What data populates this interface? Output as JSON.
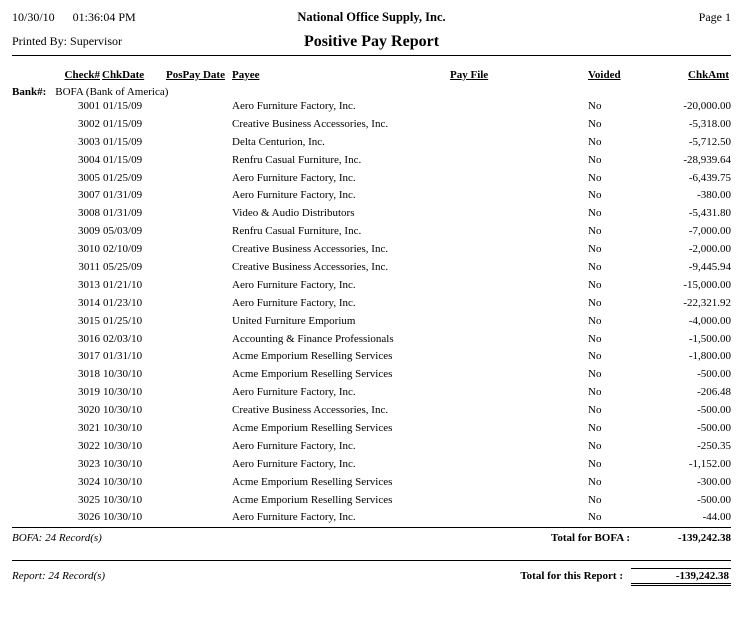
{
  "header": {
    "date": "10/30/10",
    "time": "01:36:04 PM",
    "printed_by_label": "Printed By:",
    "printed_by": "Supervisor",
    "company": "National Office Supply, Inc.",
    "title": "Positive Pay Report",
    "page": "Page 1"
  },
  "columns": {
    "check": "Check#",
    "chkdate": "ChkDate",
    "pospay": "PosPay Date",
    "payee": "Payee",
    "payfile": "Pay File",
    "voided": "Voided",
    "chkamt": "ChkAmt"
  },
  "bank": {
    "label": "Bank#:",
    "name": "BOFA (Bank of America)"
  },
  "rows": [
    {
      "check": "3001",
      "chkdate": "01/15/09",
      "pospay": "",
      "payee": "Aero Furniture Factory, Inc.",
      "payfile": "",
      "voided": "No",
      "chkamt": "-20,000.00"
    },
    {
      "check": "3002",
      "chkdate": "01/15/09",
      "pospay": "",
      "payee": "Creative Business Accessories, Inc.",
      "payfile": "",
      "voided": "No",
      "chkamt": "-5,318.00"
    },
    {
      "check": "3003",
      "chkdate": "01/15/09",
      "pospay": "",
      "payee": "Delta Centurion, Inc.",
      "payfile": "",
      "voided": "No",
      "chkamt": "-5,712.50"
    },
    {
      "check": "3004",
      "chkdate": "01/15/09",
      "pospay": "",
      "payee": "Renfru Casual Furniture, Inc.",
      "payfile": "",
      "voided": "No",
      "chkamt": "-28,939.64"
    },
    {
      "check": "3005",
      "chkdate": "01/25/09",
      "pospay": "",
      "payee": "Aero Furniture Factory, Inc.",
      "payfile": "",
      "voided": "No",
      "chkamt": "-6,439.75"
    },
    {
      "check": "3007",
      "chkdate": "01/31/09",
      "pospay": "",
      "payee": "Aero Furniture Factory, Inc.",
      "payfile": "",
      "voided": "No",
      "chkamt": "-380.00"
    },
    {
      "check": "3008",
      "chkdate": "01/31/09",
      "pospay": "",
      "payee": "Video & Audio Distributors",
      "payfile": "",
      "voided": "No",
      "chkamt": "-5,431.80"
    },
    {
      "check": "3009",
      "chkdate": "05/03/09",
      "pospay": "",
      "payee": "Renfru Casual Furniture, Inc.",
      "payfile": "",
      "voided": "No",
      "chkamt": "-7,000.00"
    },
    {
      "check": "3010",
      "chkdate": "02/10/09",
      "pospay": "",
      "payee": "Creative Business Accessories, Inc.",
      "payfile": "",
      "voided": "No",
      "chkamt": "-2,000.00"
    },
    {
      "check": "3011",
      "chkdate": "05/25/09",
      "pospay": "",
      "payee": "Creative Business Accessories, Inc.",
      "payfile": "",
      "voided": "No",
      "chkamt": "-9,445.94"
    },
    {
      "check": "3013",
      "chkdate": "01/21/10",
      "pospay": "",
      "payee": "Aero Furniture Factory, Inc.",
      "payfile": "",
      "voided": "No",
      "chkamt": "-15,000.00"
    },
    {
      "check": "3014",
      "chkdate": "01/23/10",
      "pospay": "",
      "payee": "Aero Furniture Factory, Inc.",
      "payfile": "",
      "voided": "No",
      "chkamt": "-22,321.92"
    },
    {
      "check": "3015",
      "chkdate": "01/25/10",
      "pospay": "",
      "payee": "United Furniture Emporium",
      "payfile": "",
      "voided": "No",
      "chkamt": "-4,000.00"
    },
    {
      "check": "3016",
      "chkdate": "02/03/10",
      "pospay": "",
      "payee": "Accounting & Finance Professionals",
      "payfile": "",
      "voided": "No",
      "chkamt": "-1,500.00"
    },
    {
      "check": "3017",
      "chkdate": "01/31/10",
      "pospay": "",
      "payee": "Acme Emporium Reselling Services",
      "payfile": "",
      "voided": "No",
      "chkamt": "-1,800.00"
    },
    {
      "check": "3018",
      "chkdate": "10/30/10",
      "pospay": "",
      "payee": "Acme Emporium Reselling Services",
      "payfile": "",
      "voided": "No",
      "chkamt": "-500.00"
    },
    {
      "check": "3019",
      "chkdate": "10/30/10",
      "pospay": "",
      "payee": "Aero Furniture Factory, Inc.",
      "payfile": "",
      "voided": "No",
      "chkamt": "-206.48"
    },
    {
      "check": "3020",
      "chkdate": "10/30/10",
      "pospay": "",
      "payee": "Creative Business Accessories, Inc.",
      "payfile": "",
      "voided": "No",
      "chkamt": "-500.00"
    },
    {
      "check": "3021",
      "chkdate": "10/30/10",
      "pospay": "",
      "payee": "Acme Emporium Reselling Services",
      "payfile": "",
      "voided": "No",
      "chkamt": "-500.00"
    },
    {
      "check": "3022",
      "chkdate": "10/30/10",
      "pospay": "",
      "payee": "Aero Furniture Factory, Inc.",
      "payfile": "",
      "voided": "No",
      "chkamt": "-250.35"
    },
    {
      "check": "3023",
      "chkdate": "10/30/10",
      "pospay": "",
      "payee": "Aero Furniture Factory, Inc.",
      "payfile": "",
      "voided": "No",
      "chkamt": "-1,152.00"
    },
    {
      "check": "3024",
      "chkdate": "10/30/10",
      "pospay": "",
      "payee": "Acme Emporium Reselling Services",
      "payfile": "",
      "voided": "No",
      "chkamt": "-300.00"
    },
    {
      "check": "3025",
      "chkdate": "10/30/10",
      "pospay": "",
      "payee": "Acme Emporium Reselling Services",
      "payfile": "",
      "voided": "No",
      "chkamt": "-500.00"
    },
    {
      "check": "3026",
      "chkdate": "10/30/10",
      "pospay": "",
      "payee": "Aero Furniture Factory, Inc.",
      "payfile": "",
      "voided": "No",
      "chkamt": "-44.00"
    }
  ],
  "totals": {
    "bank_records": "BOFA: 24 Record(s)",
    "bank_total_label": "Total for BOFA :",
    "bank_total": "-139,242.38",
    "report_records": "Report: 24 Record(s)",
    "report_total_label": "Total for this Report :",
    "report_total": "-139,242.38"
  }
}
